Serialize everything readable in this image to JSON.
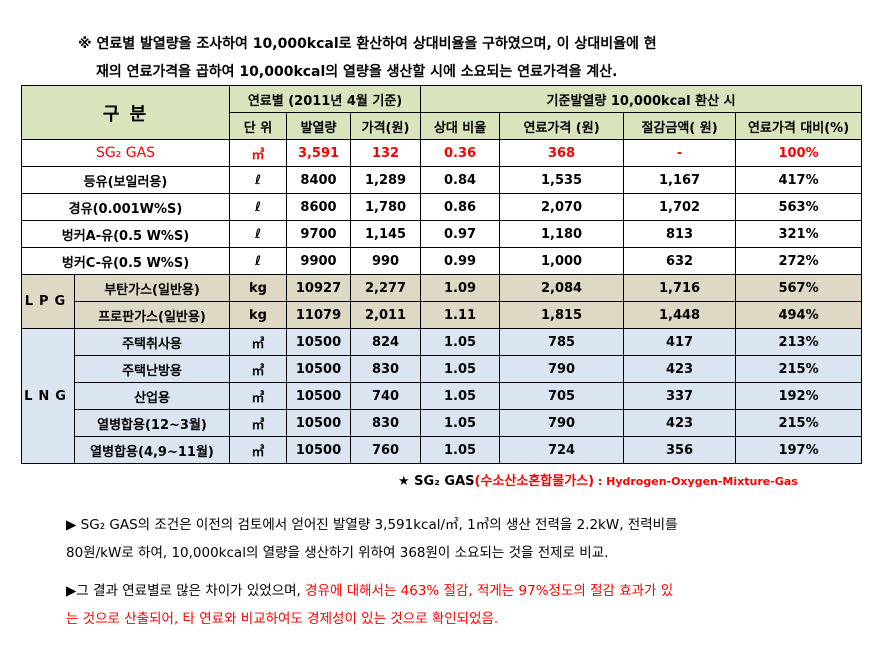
{
  "intro": {
    "line1": "※ 연료별 발열량을 조사하여 10,000kcal로 환산하여 상대비율을 구하였으며, 이 상대비율에 현",
    "line2": "재의 연료가격을 곱하여 10,000kcal의 열량을 생산할 시에 소요되는 연료가격을 계산."
  },
  "table": {
    "header": {
      "gubun": "구 분",
      "by_fuel": "연료별 (2011년 4월 기준)",
      "std": "기준발열량 10,000kcal 환산 시",
      "cols": [
        "단 위",
        "발열량",
        "가격(원)",
        "상대 비율",
        "연료가격 (원)",
        "절감금액( 원)",
        "연료가격 대비(%)"
      ]
    },
    "groups": {
      "lpg": "LPG",
      "lng": "LNG"
    },
    "rows": [
      {
        "name": "SG₂ GAS",
        "unit": "㎥",
        "heat": "3,591",
        "price": "132",
        "ratio": "0.36",
        "fuel_price": "368",
        "saving": "-",
        "pct": "100%"
      },
      {
        "name": "등유(보일러용)",
        "unit": "ℓ",
        "heat": "8400",
        "price": "1,289",
        "ratio": "0.84",
        "fuel_price": "1,535",
        "saving": "1,167",
        "pct": "417%"
      },
      {
        "name": "경유(0.001W%S)",
        "unit": "ℓ",
        "heat": "8600",
        "price": "1,780",
        "ratio": "0.86",
        "fuel_price": "2,070",
        "saving": "1,702",
        "pct": "563%"
      },
      {
        "name": "벙커A-유(0.5 W%S)",
        "unit": "ℓ",
        "heat": "9700",
        "price": "1,145",
        "ratio": "0.97",
        "fuel_price": "1,180",
        "saving": "813",
        "pct": "321%"
      },
      {
        "name": "벙커C-유(0.5 W%S)",
        "unit": "ℓ",
        "heat": "9900",
        "price": "990",
        "ratio": "0.99",
        "fuel_price": "1,000",
        "saving": "632",
        "pct": "272%"
      },
      {
        "name": "부탄가스(일반용)",
        "unit": "kg",
        "heat": "10927",
        "price": "2,277",
        "ratio": "1.09",
        "fuel_price": "2,084",
        "saving": "1,716",
        "pct": "567%"
      },
      {
        "name": "프로판가스(일반용)",
        "unit": "kg",
        "heat": "11079",
        "price": "2,011",
        "ratio": "1.11",
        "fuel_price": "1,815",
        "saving": "1,448",
        "pct": "494%"
      },
      {
        "name": "주택취사용",
        "unit": "㎥",
        "heat": "10500",
        "price": "824",
        "ratio": "1.05",
        "fuel_price": "785",
        "saving": "417",
        "pct": "213%"
      },
      {
        "name": "주택난방용",
        "unit": "㎥",
        "heat": "10500",
        "price": "830",
        "ratio": "1.05",
        "fuel_price": "790",
        "saving": "423",
        "pct": "215%"
      },
      {
        "name": "산업용",
        "unit": "㎥",
        "heat": "10500",
        "price": "740",
        "ratio": "1.05",
        "fuel_price": "705",
        "saving": "337",
        "pct": "192%"
      },
      {
        "name": "열병합용(12~3월)",
        "unit": "㎥",
        "heat": "10500",
        "price": "830",
        "ratio": "1.05",
        "fuel_price": "790",
        "saving": "423",
        "pct": "215%"
      },
      {
        "name": "열병합용(4,9~11월)",
        "unit": "㎥",
        "heat": "10500",
        "price": "760",
        "ratio": "1.05",
        "fuel_price": "724",
        "saving": "356",
        "pct": "197%"
      }
    ]
  },
  "note": {
    "star_prefix": "★ SG₂ GAS",
    "korean": "(수소산소혼합물가스)",
    "english": " : Hydrogen-Oxygen-Mixture-Gas"
  },
  "para1": {
    "line1": "▶  SG₂ GAS의 조건은 이전의 검토에서 얻어진 발열량 3,591kcal/㎥, 1㎥의 생산 전력을 2.2kW, 전력비를",
    "line2": "80원/kW로 하여, 10,000kcal의 열량을 생산하기 위하여 368원이 소요되는 것을 전제로 비교."
  },
  "para2": {
    "line1_black": "▶그 결과 연료별로 많은 차이가 있었으며, ",
    "line1_red": "경유에 대해서는 463% 절감, 적게는 97%정도의 절감 효과가 있",
    "line2_red": "는 것으로 산출되어, 타 연료와 비교하여도 경제성이 있는 것으로 확인되었음."
  },
  "colors": {
    "header_green": "#d8e4bc",
    "lpg_tan": "#ddd9c4",
    "lng_blue": "#dbe5f1",
    "highlight_red": "#ff0000"
  }
}
